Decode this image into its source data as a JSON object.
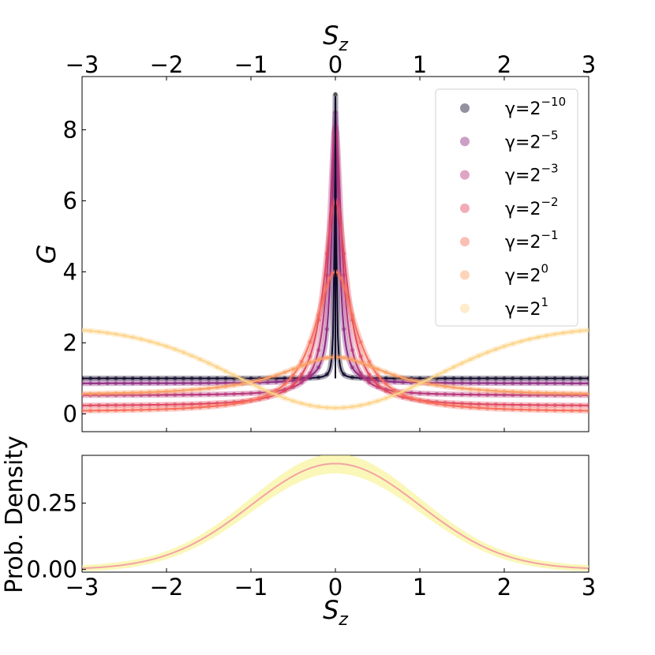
{
  "chart_data": [
    {
      "type": "line",
      "title": "",
      "xlabel": "S_z",
      "ylabel": "G",
      "xlim": [
        -3,
        3
      ],
      "ylim": [
        -0.5,
        9.5
      ],
      "xticks": [
        "−3",
        "−2",
        "−1",
        "0",
        "1",
        "2",
        "3"
      ],
      "yticks": [
        "0",
        "2",
        "4",
        "6",
        "8"
      ],
      "top_axis": {
        "label": "S_z",
        "ticks": [
          "−3",
          "−2",
          "−1",
          "0",
          "1",
          "2",
          "3"
        ]
      },
      "legend_position": "upper-right",
      "series": [
        {
          "name": "γ=2^−10",
          "label_base": "γ=2",
          "label_exp": "−10",
          "gamma": 0.0009765625,
          "color": "#10082a"
        },
        {
          "name": "γ=2^−5",
          "label_base": "γ=2",
          "label_exp": "−5",
          "gamma": 0.03125,
          "color": "#8c2a81"
        },
        {
          "name": "γ=2^−3",
          "label_base": "γ=2",
          "label_exp": "−3",
          "gamma": 0.125,
          "color": "#b83779"
        },
        {
          "name": "γ=2^−2",
          "label_base": "γ=2",
          "label_exp": "−2",
          "gamma": 0.25,
          "color": "#e0485f"
        },
        {
          "name": "γ=2^−1",
          "label_base": "γ=2",
          "label_exp": "−1",
          "gamma": 0.5,
          "color": "#f7705c"
        },
        {
          "name": "γ=2^0",
          "label_base": "γ=2",
          "label_exp": "0",
          "gamma": 1,
          "color": "#fb9f62"
        },
        {
          "name": "γ=2^1",
          "label_base": "γ=2",
          "label_exp": "1",
          "gamma": 2,
          "color": "#fdd48a"
        }
      ]
    },
    {
      "type": "line",
      "title": "",
      "xlabel": "S_z",
      "ylabel": "Prob.  Density",
      "xlim": [
        -3,
        3
      ],
      "ylim": [
        -0.01,
        0.43
      ],
      "xticks": [
        "−3",
        "−2",
        "−1",
        "0",
        "1",
        "2",
        "3"
      ],
      "yticks": [
        "0.00",
        "0.25"
      ],
      "series": [
        {
          "name": "",
          "distribution": "standard normal",
          "peak": 0.399,
          "color": "#f4a3a3",
          "band_color": "#f6f28a"
        }
      ]
    }
  ]
}
